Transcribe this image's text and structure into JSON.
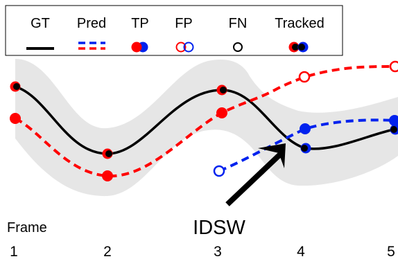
{
  "legend": {
    "gt": "GT",
    "pred": "Pred",
    "tp": "TP",
    "fp": "FP",
    "fn": "FN",
    "tracked": "Tracked"
  },
  "axis": {
    "label": "Frame",
    "frames": [
      "1",
      "2",
      "3",
      "4",
      "5"
    ]
  },
  "annotation": {
    "idsw": "IDSW"
  },
  "colors": {
    "gt": "#000000",
    "pred_red": "#ff0000",
    "pred_blue": "#0022ee",
    "band": "#e6e6e6"
  }
}
